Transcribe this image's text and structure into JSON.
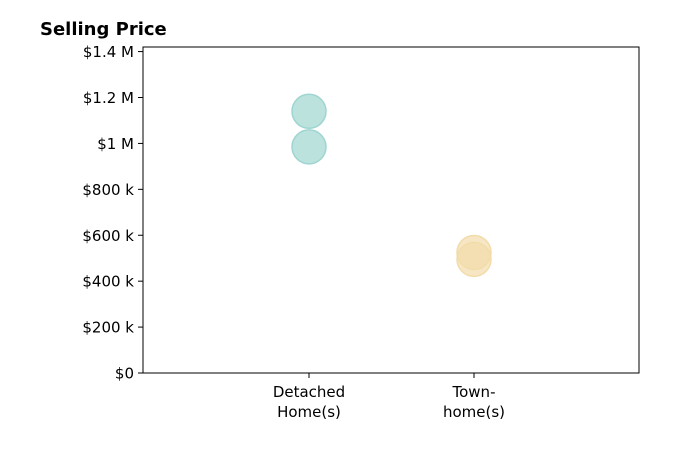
{
  "chart_data": {
    "type": "scatter",
    "title": "Selling Price",
    "xlabel": "",
    "ylabel": "",
    "categories": [
      {
        "lines": [
          "Detached",
          "Home(s)"
        ]
      },
      {
        "lines": [
          "Town-",
          "home(s)"
        ]
      }
    ],
    "ylim": [
      0,
      1420000
    ],
    "yticks": [
      {
        "value": 0,
        "label": "$0"
      },
      {
        "value": 200000,
        "label": "$200 k"
      },
      {
        "value": 400000,
        "label": "$400 k"
      },
      {
        "value": 600000,
        "label": "$600 k"
      },
      {
        "value": 800000,
        "label": "$800 k"
      },
      {
        "value": 1000000,
        "label": "$1 M"
      },
      {
        "value": 1200000,
        "label": "$1.2 M"
      },
      {
        "value": 1400000,
        "label": "$1.4 M"
      }
    ],
    "points": [
      {
        "category": 0,
        "value": 1140000,
        "color": "#9fd5d0"
      },
      {
        "category": 0,
        "value": 985000,
        "color": "#9fd5d0"
      },
      {
        "category": 1,
        "value": 525000,
        "color": "#f2dcaa"
      },
      {
        "category": 1,
        "value": 495000,
        "color": "#f2dcaa"
      }
    ],
    "grid": false,
    "legend": "none"
  }
}
